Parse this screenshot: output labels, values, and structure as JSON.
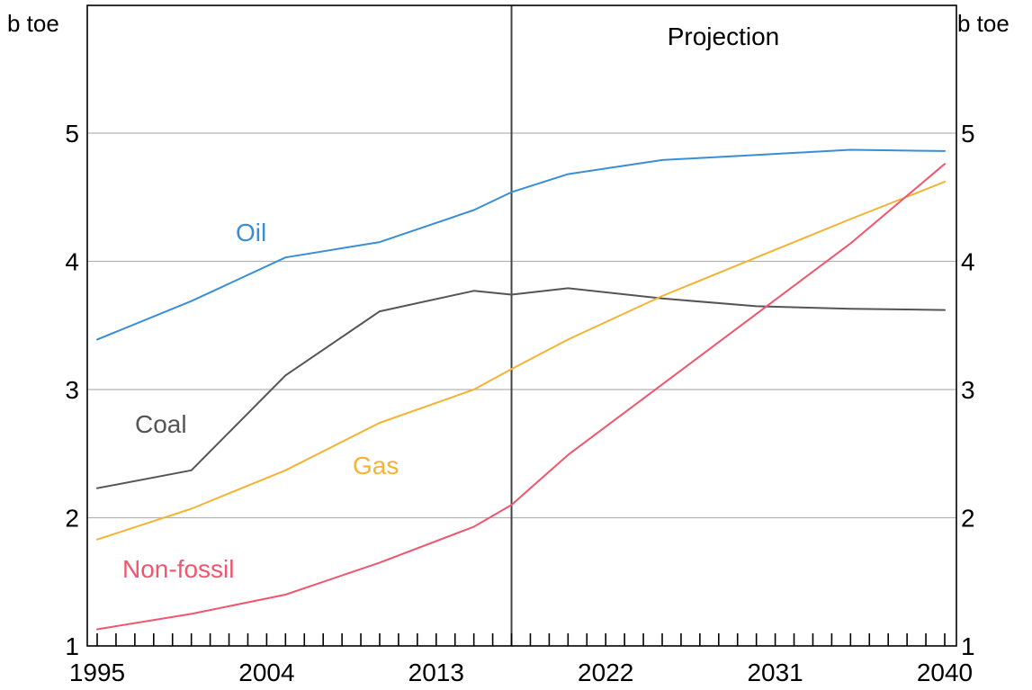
{
  "chart_data": {
    "type": "line",
    "y_unit_left": "b toe",
    "y_unit_right": "b toe",
    "annotation": "Projection",
    "projection_start": 2017,
    "xlim": [
      1995,
      2040
    ],
    "ylim": [
      1,
      5.9
    ],
    "x_ticks": [
      1995,
      2004,
      2013,
      2022,
      2031,
      2040
    ],
    "y_ticks": [
      1,
      2,
      3,
      4,
      5
    ],
    "grid": true,
    "series": [
      {
        "name": "Oil",
        "color": "#3a8ed4",
        "x": [
          1995,
          2000,
          2005,
          2010,
          2015,
          2017,
          2020,
          2025,
          2030,
          2035,
          2040
        ],
        "y": [
          3.39,
          3.69,
          4.03,
          4.15,
          4.4,
          4.54,
          4.68,
          4.79,
          4.83,
          4.87,
          4.86
        ]
      },
      {
        "name": "Coal",
        "color": "#555555",
        "x": [
          1995,
          2000,
          2005,
          2010,
          2015,
          2017,
          2020,
          2025,
          2030,
          2035,
          2040
        ],
        "y": [
          2.23,
          2.37,
          3.11,
          3.61,
          3.77,
          3.74,
          3.79,
          3.71,
          3.65,
          3.63,
          3.62
        ]
      },
      {
        "name": "Gas",
        "color": "#f5b335",
        "x": [
          1995,
          2000,
          2005,
          2010,
          2015,
          2017,
          2020,
          2025,
          2030,
          2035,
          2040
        ],
        "y": [
          1.83,
          2.07,
          2.37,
          2.74,
          3.0,
          3.16,
          3.39,
          3.73,
          4.03,
          4.33,
          4.62
        ]
      },
      {
        "name": "Non-fossil",
        "color": "#f0566e",
        "x": [
          1995,
          2000,
          2005,
          2010,
          2015,
          2017,
          2020,
          2025,
          2030,
          2035,
          2040
        ],
        "y": [
          1.13,
          1.25,
          1.4,
          1.65,
          1.93,
          2.1,
          2.49,
          3.04,
          3.59,
          4.14,
          4.76
        ]
      }
    ]
  }
}
